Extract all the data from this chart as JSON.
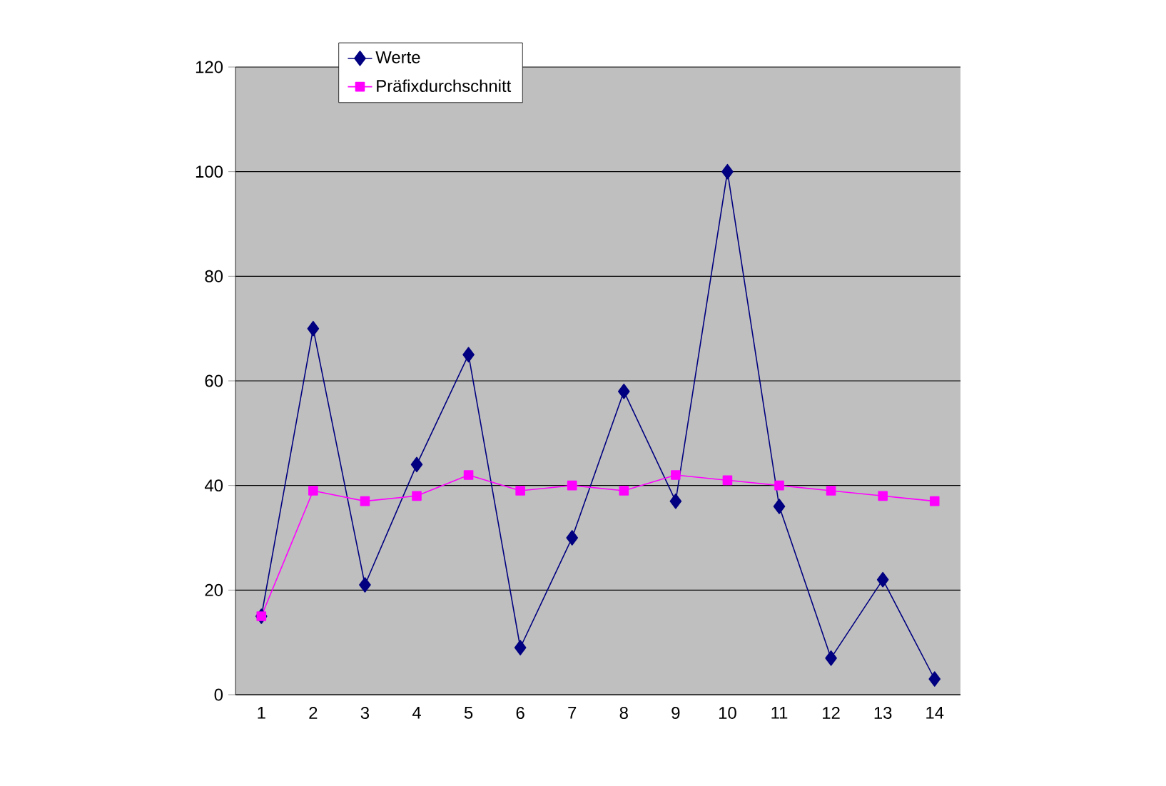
{
  "chart_data": {
    "type": "line",
    "categories": [
      "1",
      "2",
      "3",
      "4",
      "5",
      "6",
      "7",
      "8",
      "9",
      "10",
      "11",
      "12",
      "13",
      "14"
    ],
    "series": [
      {
        "name": "Werte",
        "color": "#000080",
        "marker": "diamond",
        "values": [
          15,
          70,
          21,
          44,
          65,
          9,
          30,
          58,
          37,
          100,
          36,
          7,
          22,
          3
        ]
      },
      {
        "name": "Präfixdurchschnitt",
        "color": "#ff00ff",
        "marker": "square",
        "values": [
          15,
          39,
          37,
          38,
          42,
          39,
          40,
          39,
          42,
          41,
          40,
          39,
          38,
          37
        ]
      }
    ],
    "ylim": [
      0,
      120
    ],
    "yticks": [
      0,
      20,
      40,
      60,
      80,
      100,
      120
    ],
    "grid": "y",
    "legend": "top left"
  }
}
